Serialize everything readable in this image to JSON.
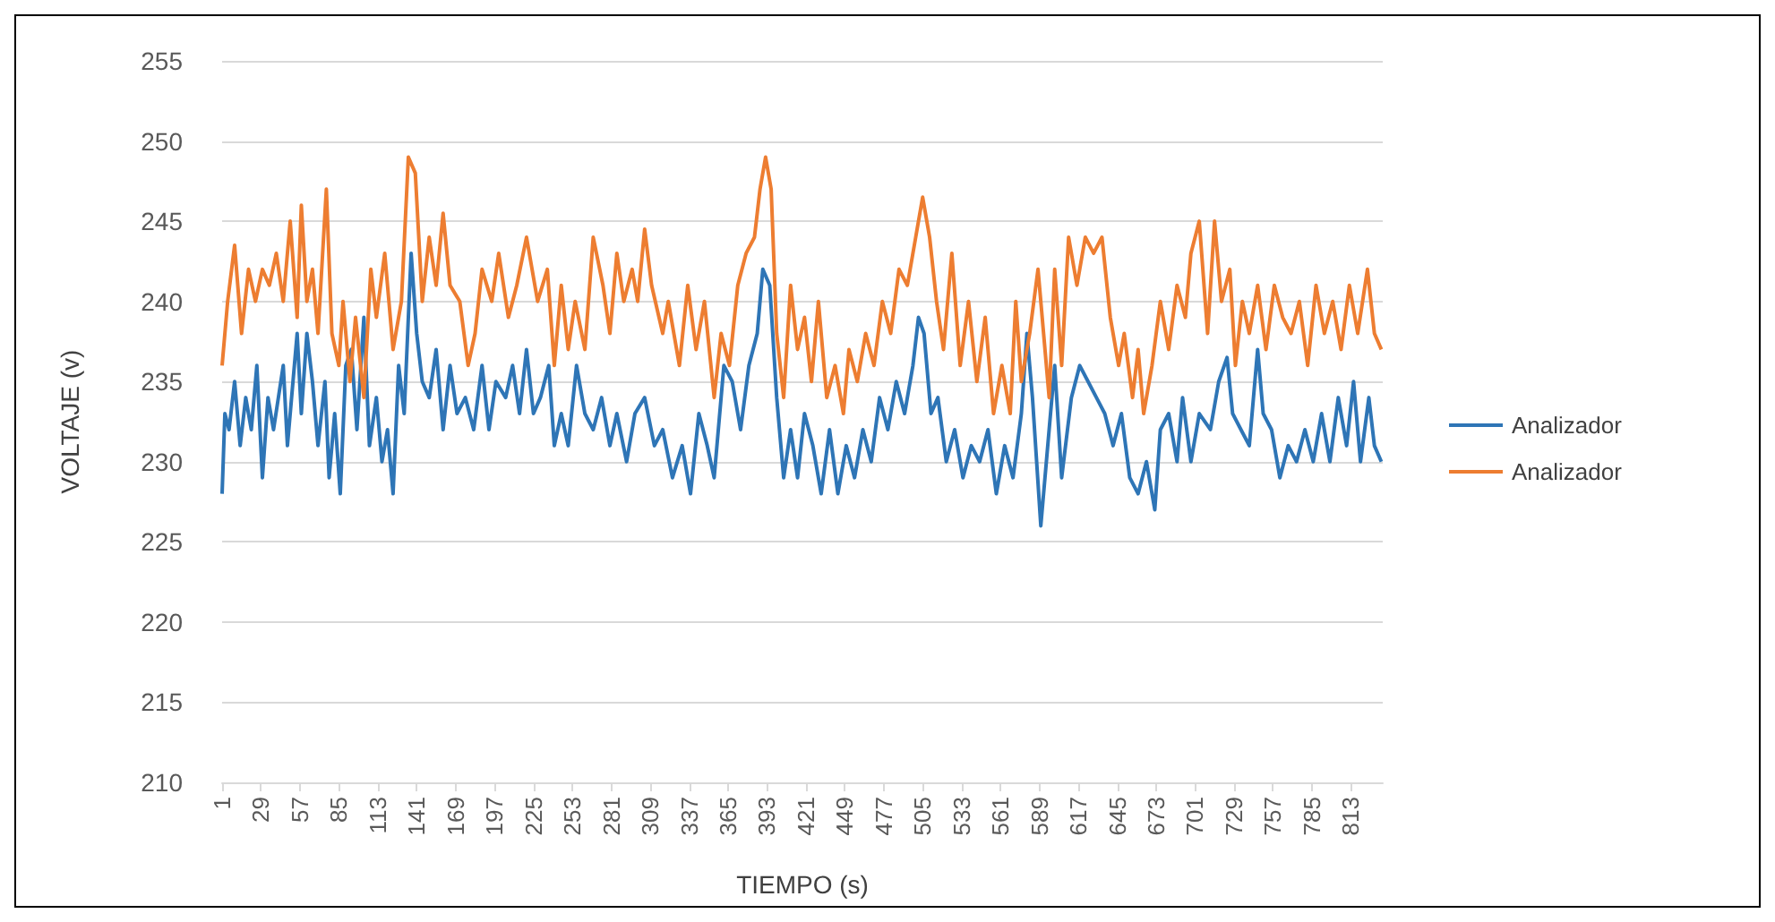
{
  "chart_data": {
    "type": "line",
    "xlabel": "TIEMPO (s)",
    "ylabel": "VOLTAJE (v)",
    "xlim": [
      1,
      836
    ],
    "xticks": [
      1,
      29,
      57,
      85,
      113,
      141,
      169,
      197,
      225,
      253,
      281,
      309,
      337,
      365,
      393,
      421,
      449,
      477,
      505,
      533,
      561,
      589,
      617,
      645,
      673,
      701,
      729,
      757,
      785,
      813
    ],
    "ylim": [
      210,
      255
    ],
    "yticks": [
      210,
      215,
      220,
      225,
      230,
      235,
      240,
      245,
      250,
      255
    ],
    "grid": "y",
    "legend": "right",
    "marker": "none",
    "line_style": "solid",
    "series": [
      {
        "name": "Analizador",
        "color": "#2e75b6",
        "x": [
          1,
          3,
          6,
          10,
          14,
          18,
          22,
          26,
          30,
          34,
          38,
          45,
          48,
          55,
          58,
          62,
          66,
          70,
          75,
          78,
          82,
          86,
          90,
          94,
          98,
          103,
          107,
          112,
          116,
          120,
          124,
          128,
          132,
          137,
          141,
          145,
          150,
          155,
          160,
          165,
          170,
          176,
          182,
          188,
          193,
          198,
          205,
          210,
          215,
          220,
          225,
          230,
          236,
          240,
          245,
          250,
          256,
          262,
          268,
          274,
          280,
          285,
          292,
          298,
          305,
          312,
          318,
          325,
          332,
          338,
          344,
          350,
          355,
          362,
          368,
          374,
          380,
          386,
          390,
          395,
          400,
          405,
          410,
          415,
          420,
          426,
          432,
          438,
          444,
          450,
          456,
          462,
          468,
          474,
          480,
          486,
          492,
          498,
          502,
          506,
          511,
          516,
          522,
          528,
          534,
          540,
          546,
          552,
          558,
          564,
          570,
          576,
          580,
          584,
          590,
          596,
          600,
          605,
          612,
          618,
          624,
          630,
          636,
          642,
          648,
          654,
          660,
          666,
          672,
          676,
          682,
          688,
          692,
          698,
          704,
          712,
          718,
          724,
          728,
          734,
          740,
          746,
          750,
          756,
          762,
          768,
          774,
          780,
          786,
          792,
          798,
          804,
          810,
          815,
          820,
          826,
          830,
          835
        ],
        "values": [
          228,
          233,
          232,
          235,
          231,
          234,
          232,
          236,
          229,
          234,
          232,
          236,
          231,
          238,
          233,
          238,
          235,
          231,
          235,
          229,
          233,
          228,
          236,
          237,
          232,
          239,
          231,
          234,
          230,
          232,
          228,
          236,
          233,
          243,
          238,
          235,
          234,
          237,
          232,
          236,
          233,
          234,
          232,
          236,
          232,
          235,
          234,
          236,
          233,
          237,
          233,
          234,
          236,
          231,
          233,
          231,
          236,
          233,
          232,
          234,
          231,
          233,
          230,
          233,
          234,
          231,
          232,
          229,
          231,
          228,
          233,
          231,
          229,
          236,
          235,
          232,
          236,
          238,
          242,
          241,
          234,
          229,
          232,
          229,
          233,
          231,
          228,
          232,
          228,
          231,
          229,
          232,
          230,
          234,
          232,
          235,
          233,
          236,
          239,
          238,
          233,
          234,
          230,
          232,
          229,
          231,
          230,
          232,
          228,
          231,
          229,
          233,
          238,
          234,
          226,
          232,
          236,
          229,
          234,
          236,
          235,
          234,
          233,
          231,
          233,
          229,
          228,
          230,
          227,
          232,
          233,
          230,
          234,
          230,
          233,
          232,
          235,
          236.5,
          233,
          232,
          231,
          237,
          233,
          232,
          229,
          231,
          230,
          232,
          230,
          233,
          230,
          234,
          231,
          235,
          230,
          234,
          231,
          230
        ]
      },
      {
        "name": "Analizador",
        "color": "#ed7d31",
        "x": [
          1,
          5,
          10,
          15,
          20,
          25,
          30,
          35,
          40,
          45,
          50,
          55,
          58,
          62,
          66,
          70,
          76,
          80,
          85,
          88,
          93,
          97,
          103,
          108,
          112,
          118,
          124,
          130,
          135,
          140,
          145,
          150,
          155,
          160,
          165,
          172,
          178,
          183,
          188,
          195,
          200,
          207,
          213,
          220,
          228,
          235,
          240,
          245,
          250,
          255,
          262,
          268,
          275,
          280,
          285,
          290,
          296,
          300,
          305,
          310,
          318,
          322,
          330,
          336,
          342,
          348,
          355,
          360,
          366,
          372,
          378,
          384,
          388,
          392,
          396,
          400,
          405,
          410,
          415,
          420,
          425,
          430,
          436,
          442,
          448,
          452,
          458,
          464,
          470,
          476,
          482,
          488,
          494,
          500,
          505,
          510,
          515,
          520,
          526,
          532,
          538,
          544,
          550,
          556,
          562,
          568,
          572,
          576,
          582,
          588,
          592,
          596,
          600,
          605,
          610,
          616,
          622,
          628,
          634,
          640,
          646,
          650,
          656,
          660,
          664,
          670,
          676,
          682,
          688,
          694,
          698,
          704,
          710,
          715,
          720,
          726,
          730,
          735,
          740,
          746,
          752,
          758,
          764,
          770,
          776,
          782,
          788,
          794,
          800,
          806,
          812,
          818,
          825,
          830,
          835
        ],
        "values": [
          236,
          240,
          243.5,
          238,
          242,
          240,
          242,
          241,
          243,
          240,
          245,
          239,
          246,
          240,
          242,
          238,
          247,
          238,
          236,
          240,
          235,
          239,
          234,
          242,
          239,
          243,
          237,
          240,
          249,
          248,
          240,
          244,
          241,
          245.5,
          241,
          240,
          236,
          238,
          242,
          240,
          243,
          239,
          241,
          244,
          240,
          242,
          236,
          241,
          237,
          240,
          237,
          244,
          241,
          238,
          243,
          240,
          242,
          240,
          244.5,
          241,
          238,
          240,
          236,
          241,
          237,
          240,
          234,
          238,
          236,
          241,
          243,
          244,
          247,
          249,
          247,
          238,
          234,
          241,
          237,
          239,
          235,
          240,
          234,
          236,
          233,
          237,
          235,
          238,
          236,
          240,
          238,
          242,
          241,
          244,
          246.5,
          244,
          240,
          237,
          243,
          236,
          240,
          235,
          239,
          233,
          236,
          233,
          240,
          235,
          238,
          242,
          238,
          234,
          242,
          236,
          244,
          241,
          244,
          243,
          244,
          239,
          236,
          238,
          234,
          237,
          233,
          236,
          240,
          237,
          241,
          239,
          243,
          245,
          238,
          245,
          240,
          242,
          236,
          240,
          238,
          241,
          237,
          241,
          239,
          238,
          240,
          236,
          241,
          238,
          240,
          237,
          241,
          238,
          242,
          238,
          237
        ]
      }
    ]
  }
}
